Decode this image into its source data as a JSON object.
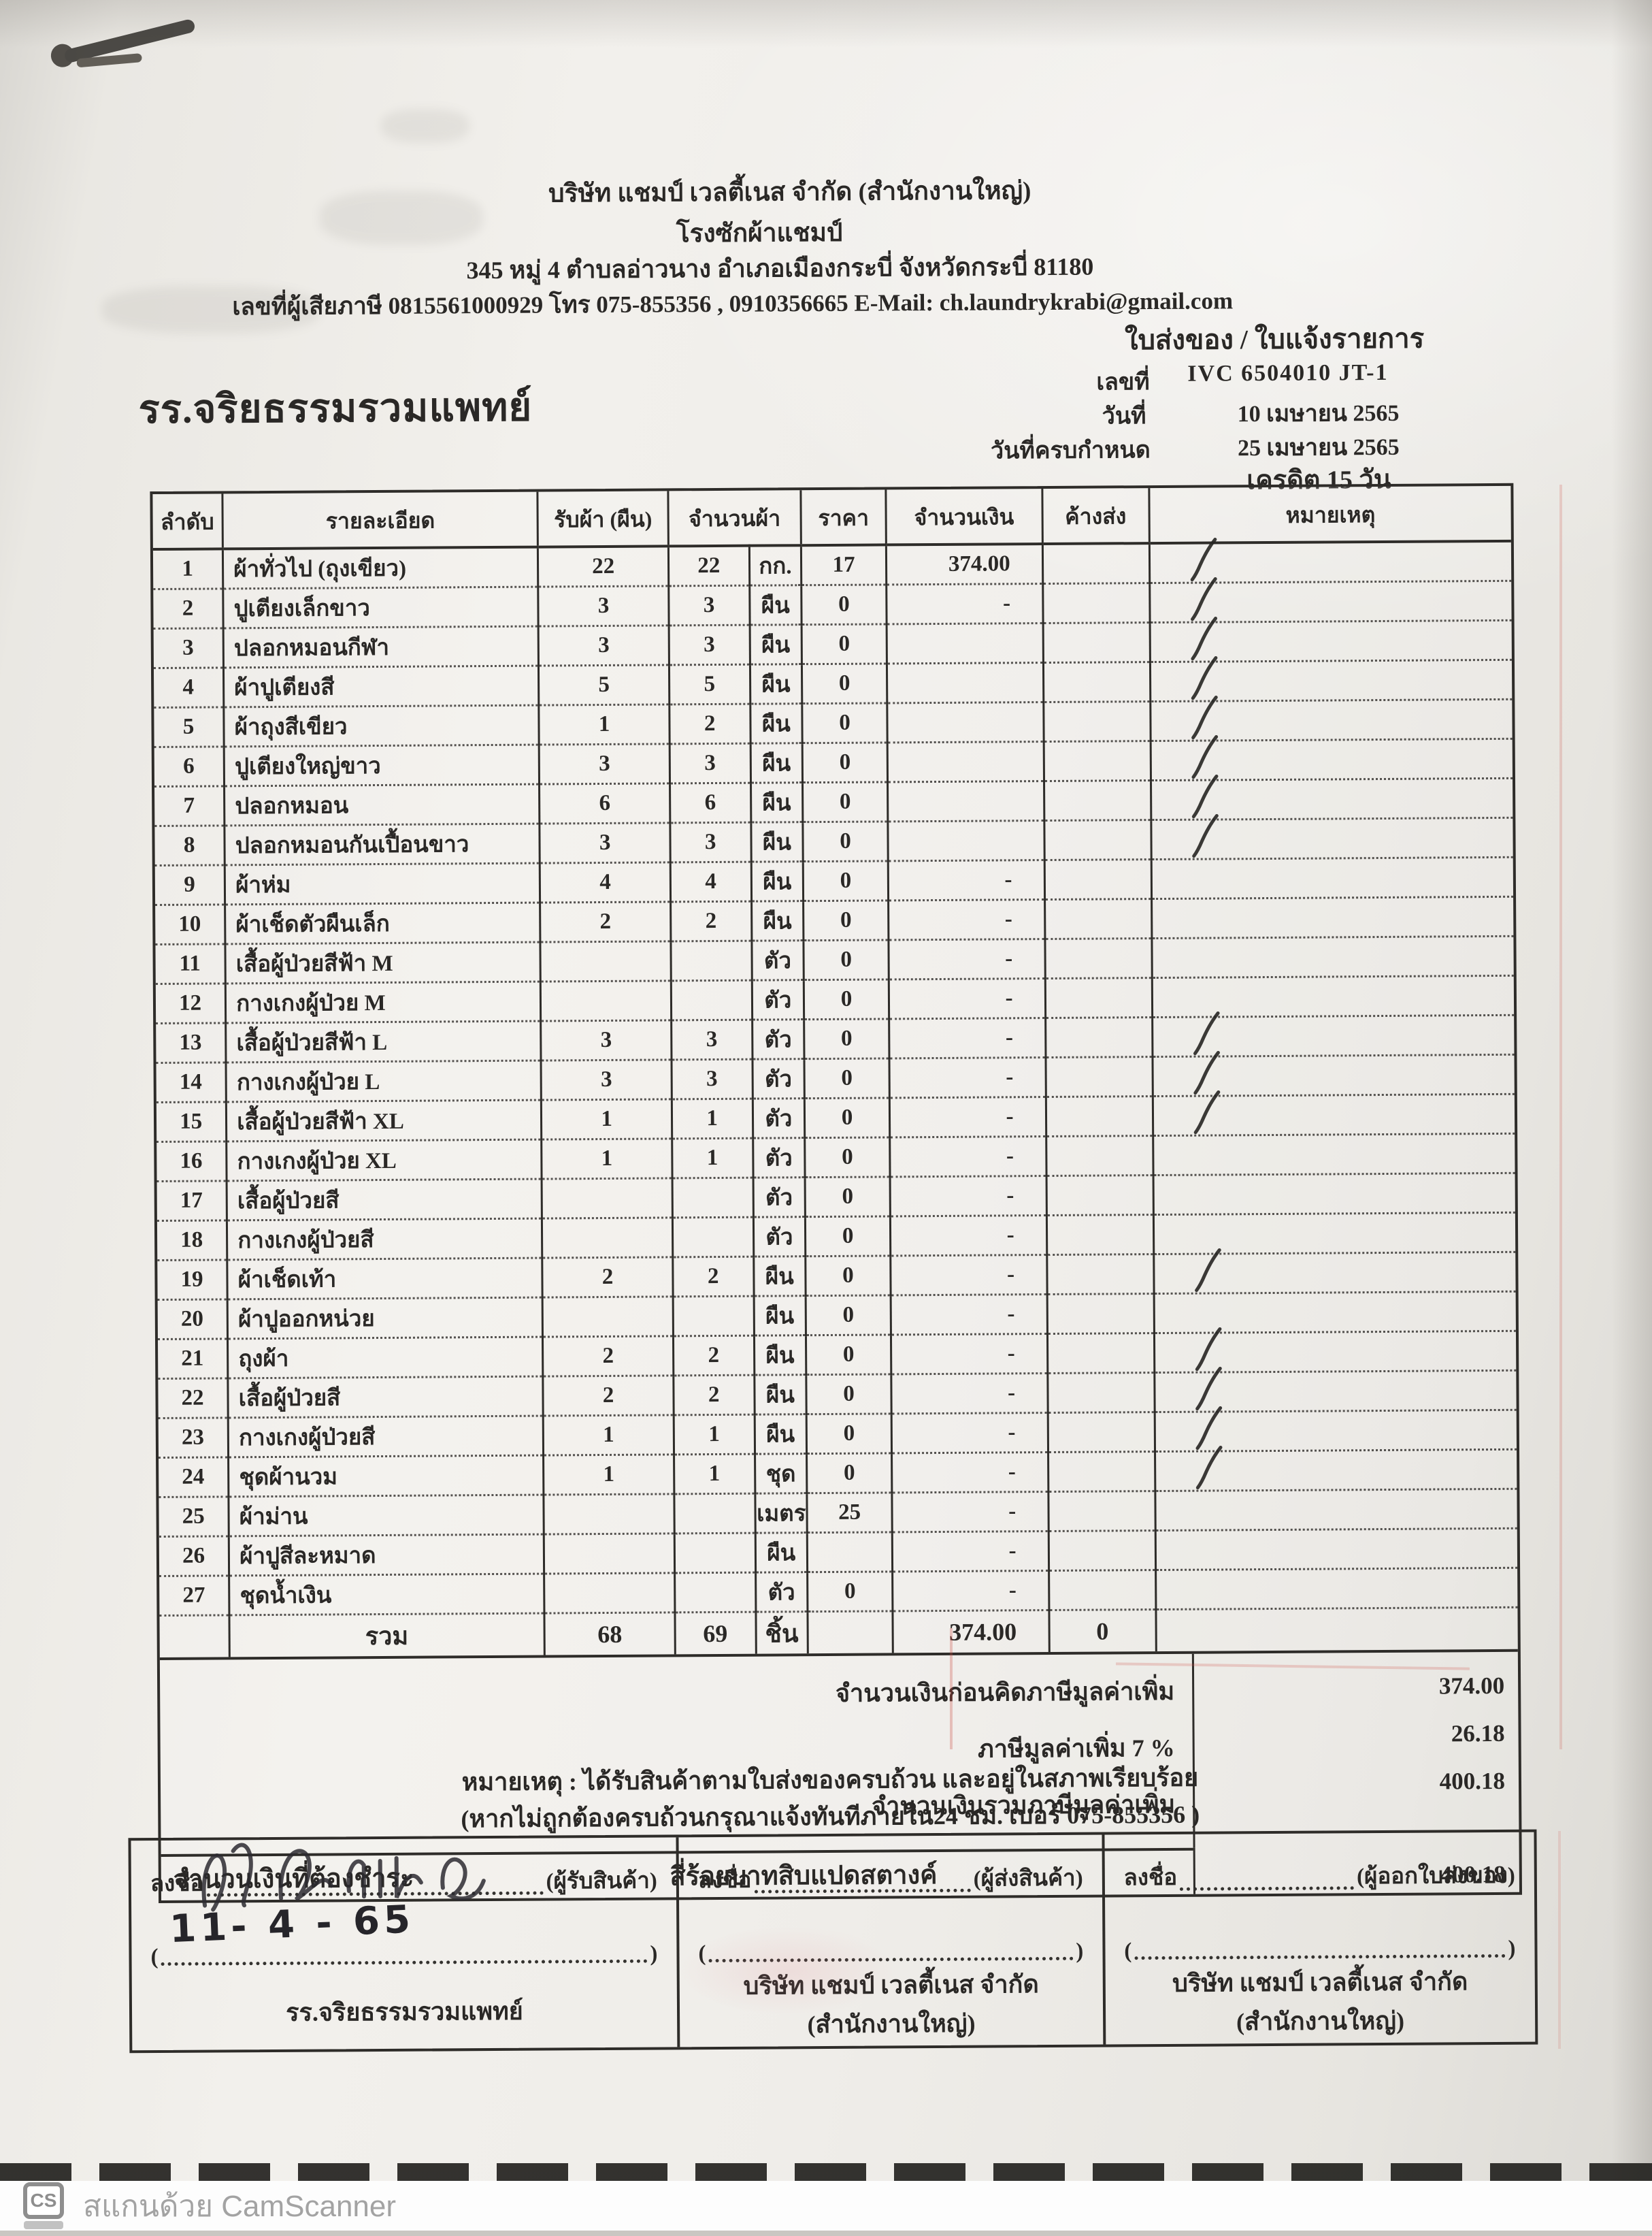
{
  "header": {
    "company": "บริษัท แชมป์ เวลตี้เนส จำกัด (สำนักงานใหญ่)",
    "facility": "โรงซักผ้าแชมป์",
    "address": "345 หมู่ 4 ตำบลอ่าวนาง อำเภอเมืองกระบี่ จังหวัดกระบี่ 81180",
    "tax_line": "เลขที่ผู้เสียภาษี 0815561000929 โทร 075-855356 , 0910356665  E-Mail: ch.laundrykrabi@gmail.com"
  },
  "doc": {
    "type_title": "ใบส่งของ / ใบแจ้งรายการ",
    "no_label": "เลขที่",
    "no_value": "IVC 6504010 JT-1",
    "date_label": "วันที่",
    "date_value": "10 เมษายน 2565",
    "due_label": "วันที่ครบกำหนด",
    "due_value": "25 เมษายน 2565",
    "credit": "เครดิต 15 วัน",
    "customer": "รร.จริยธรรมรวมแพทย์"
  },
  "table": {
    "headers": {
      "no": "ลำดับ",
      "desc": "รายละเอียด",
      "received": "รับผ้า (ผืน)",
      "qty": "จำนวนผ้า",
      "price": "ราคา",
      "amount": "จำนวนเงิน",
      "pending": "ค้างส่ง",
      "remark": "หมายเหตุ"
    },
    "rows": [
      {
        "no": "1",
        "desc": "ผ้าทั่วไป (ถุงเขียว)",
        "received": "22",
        "qty": "22",
        "unit": "กก.",
        "price": "17",
        "amount": "374.00",
        "pending": "",
        "check": true
      },
      {
        "no": "2",
        "desc": "ปูเตียงเล็กขาว",
        "received": "3",
        "qty": "3",
        "unit": "ผืน",
        "price": "0",
        "amount": "-",
        "pending": "",
        "check": true
      },
      {
        "no": "3",
        "desc": "ปลอกหมอนกีฬา",
        "received": "3",
        "qty": "3",
        "unit": "ผืน",
        "price": "0",
        "amount": "",
        "pending": "",
        "check": true
      },
      {
        "no": "4",
        "desc": "ผ้าปูเตียงสี",
        "received": "5",
        "qty": "5",
        "unit": "ผืน",
        "price": "0",
        "amount": "",
        "pending": "",
        "check": true
      },
      {
        "no": "5",
        "desc": "ผ้าถุงสีเขียว",
        "received": "1",
        "qty": "2",
        "unit": "ผืน",
        "price": "0",
        "amount": "",
        "pending": "",
        "check": true
      },
      {
        "no": "6",
        "desc": "ปูเตียงใหญ่ขาว",
        "received": "3",
        "qty": "3",
        "unit": "ผืน",
        "price": "0",
        "amount": "",
        "pending": "",
        "check": true
      },
      {
        "no": "7",
        "desc": "ปลอกหมอน",
        "received": "6",
        "qty": "6",
        "unit": "ผืน",
        "price": "0",
        "amount": "",
        "pending": "",
        "check": true
      },
      {
        "no": "8",
        "desc": "ปลอกหมอนกันเปื้อนขาว",
        "received": "3",
        "qty": "3",
        "unit": "ผืน",
        "price": "0",
        "amount": "",
        "pending": "",
        "check": true
      },
      {
        "no": "9",
        "desc": "ผ้าห่ม",
        "received": "4",
        "qty": "4",
        "unit": "ผืน",
        "price": "0",
        "amount": "-",
        "pending": "",
        "check": false
      },
      {
        "no": "10",
        "desc": "ผ้าเช็ดตัวผืนเล็ก",
        "received": "2",
        "qty": "2",
        "unit": "ผืน",
        "price": "0",
        "amount": "-",
        "pending": "",
        "check": false
      },
      {
        "no": "11",
        "desc": "เสื้อผู้ป่วยสีฟ้า M",
        "received": "",
        "qty": "",
        "unit": "ตัว",
        "price": "0",
        "amount": "-",
        "pending": "",
        "check": false
      },
      {
        "no": "12",
        "desc": "กางเกงผู้ป่วย M",
        "received": "",
        "qty": "",
        "unit": "ตัว",
        "price": "0",
        "amount": "-",
        "pending": "",
        "check": false
      },
      {
        "no": "13",
        "desc": "เสื้อผู้ป่วยสีฟ้า L",
        "received": "3",
        "qty": "3",
        "unit": "ตัว",
        "price": "0",
        "amount": "-",
        "pending": "",
        "check": true
      },
      {
        "no": "14",
        "desc": "กางเกงผู้ป่วย L",
        "received": "3",
        "qty": "3",
        "unit": "ตัว",
        "price": "0",
        "amount": "-",
        "pending": "",
        "check": true
      },
      {
        "no": "15",
        "desc": "เสื้อผู้ป่วยสีฟ้า XL",
        "received": "1",
        "qty": "1",
        "unit": "ตัว",
        "price": "0",
        "amount": "-",
        "pending": "",
        "check": true
      },
      {
        "no": "16",
        "desc": "กางเกงผู้ป่วย XL",
        "received": "1",
        "qty": "1",
        "unit": "ตัว",
        "price": "0",
        "amount": "-",
        "pending": "",
        "check": false
      },
      {
        "no": "17",
        "desc": "เสื้อผู้ป่วยสี",
        "received": "",
        "qty": "",
        "unit": "ตัว",
        "price": "0",
        "amount": "-",
        "pending": "",
        "check": false
      },
      {
        "no": "18",
        "desc": "กางเกงผู้ป่วยสี",
        "received": "",
        "qty": "",
        "unit": "ตัว",
        "price": "0",
        "amount": "-",
        "pending": "",
        "check": false
      },
      {
        "no": "19",
        "desc": "ผ้าเช็ดเท้า",
        "received": "2",
        "qty": "2",
        "unit": "ผืน",
        "price": "0",
        "amount": "-",
        "pending": "",
        "check": true
      },
      {
        "no": "20",
        "desc": "ผ้าปูออกหน่วย",
        "received": "",
        "qty": "",
        "unit": "ผืน",
        "price": "0",
        "amount": "-",
        "pending": "",
        "check": false
      },
      {
        "no": "21",
        "desc": "ถุงผ้า",
        "received": "2",
        "qty": "2",
        "unit": "ผืน",
        "price": "0",
        "amount": "-",
        "pending": "",
        "check": true
      },
      {
        "no": "22",
        "desc": "เสื้อผู้ป่วยสี",
        "received": "2",
        "qty": "2",
        "unit": "ผืน",
        "price": "0",
        "amount": "-",
        "pending": "",
        "check": true
      },
      {
        "no": "23",
        "desc": "กางเกงผู้ป่วยสี",
        "received": "1",
        "qty": "1",
        "unit": "ผืน",
        "price": "0",
        "amount": "-",
        "pending": "",
        "check": true
      },
      {
        "no": "24",
        "desc": "ชุดผ้านวม",
        "received": "1",
        "qty": "1",
        "unit": "ชุด",
        "price": "0",
        "amount": "-",
        "pending": "",
        "check": true
      },
      {
        "no": "25",
        "desc": "ผ้าม่าน",
        "received": "",
        "qty": "",
        "unit": "เมตร",
        "price": "25",
        "amount": "-",
        "pending": "",
        "check": false
      },
      {
        "no": "26",
        "desc": "ผ้าปูสีละหมาด",
        "received": "",
        "qty": "",
        "unit": "ผืน",
        "price": "",
        "amount": "-",
        "pending": "",
        "check": false
      },
      {
        "no": "27",
        "desc": "ชุดน้ำเงิน",
        "received": "",
        "qty": "",
        "unit": "ตัว",
        "price": "0",
        "amount": "-",
        "pending": "",
        "check": false
      }
    ],
    "total": {
      "label": "รวม",
      "received": "68",
      "qty": "69",
      "unit": "ชิ้น",
      "price": "",
      "amount": "374.00",
      "pending": "0"
    }
  },
  "summary": {
    "before_vat_label": "จำนวนเงินก่อนคิดภาษีมูลค่าเพิ่ม",
    "before_vat": "374.00",
    "vat_label": "ภาษีมูลค่าเพิ่ม 7 %",
    "vat": "26.18",
    "grand_label": "จำนวนเงินรวมภาษีมูลค่าเพิ่ม",
    "grand": "400.18",
    "payable_label": "จำนวนเงินที่ต้องชำระ",
    "amount_words": "สี่ร้อยบาทสิบแปดสตางค์",
    "payable": "400.18"
  },
  "notes": {
    "line1": "หมายเหตุ : ได้รับสินค้าตามใบส่งของครบถ้วน และอยู่ในสภาพเรียบร้อย",
    "line2": "(หากไม่ถูกต้องครบถ้วนกรุณาแจ้งทันทีภายใน24 ชม.  เบอร์ 075-855356 )"
  },
  "signatures": {
    "boxes": [
      {
        "sign_label": "ลงชื่อ",
        "role": "(ผู้รับสินค้า)",
        "handwritten_date": "11- 4 - 65",
        "org": "รร.จริยธรรมรวมแพทย์",
        "signed": true
      },
      {
        "sign_label": "ลงชื่อ",
        "role": "(ผู้ส่งสินค้า)",
        "handwritten_date": "",
        "org": "บริษัท แชมป์ เวลตี้เนส จำกัด (สำนักงานใหญ่)",
        "signed": false
      },
      {
        "sign_label": "ลงชื่อ",
        "role": "(ผู้ออกใบส่งของ)",
        "handwritten_date": "",
        "org": "บริษัท แชมป์ เวลตี้เนส จำกัด (สำนักงานใหญ่)",
        "signed": false
      }
    ]
  },
  "footer": {
    "logo": "CS",
    "watermark": "สแกนด้วย CamScanner"
  }
}
